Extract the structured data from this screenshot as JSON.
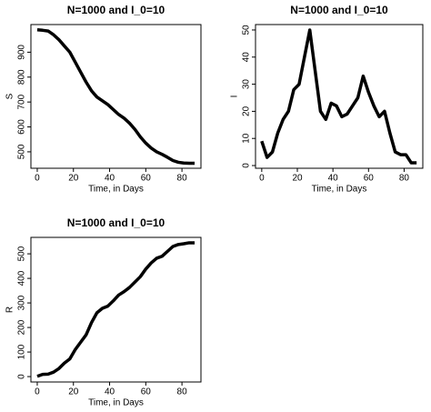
{
  "chart_data": [
    {
      "type": "line",
      "title": "N=1000 and I_0=10",
      "x_label": "Time, in Days",
      "y_label": "S",
      "x": [
        0,
        3,
        6,
        9,
        12,
        15,
        18,
        21,
        24,
        27,
        30,
        33,
        36,
        39,
        42,
        45,
        48,
        51,
        54,
        57,
        60,
        63,
        66,
        69,
        72,
        75,
        78,
        81,
        84,
        87
      ],
      "series": [
        {
          "name": "S",
          "color": "#000000",
          "values": [
            990,
            988,
            985,
            970,
            950,
            925,
            900,
            860,
            820,
            780,
            745,
            720,
            705,
            690,
            670,
            650,
            635,
            615,
            590,
            560,
            535,
            515,
            500,
            490,
            478,
            465,
            458,
            455,
            454,
            454
          ]
        }
      ],
      "xlim": [
        -3.5,
        90.5
      ],
      "xticks": [
        0,
        20,
        40,
        60,
        80
      ],
      "ylim": [
        434,
        1011
      ],
      "yticks": [
        500,
        600,
        700,
        800,
        900
      ]
    },
    {
      "type": "line",
      "title": "N=1000 and I_0=10",
      "x_label": "Time, in Days",
      "y_label": "I",
      "x": [
        0,
        3,
        6,
        9,
        12,
        15,
        18,
        21,
        24,
        27,
        30,
        33,
        36,
        39,
        42,
        45,
        48,
        51,
        54,
        57,
        60,
        63,
        66,
        69,
        72,
        75,
        78,
        81,
        84,
        87
      ],
      "series": [
        {
          "name": "I",
          "color": "#000000",
          "values": [
            9,
            3,
            5,
            12,
            17,
            20,
            28,
            30,
            40,
            50,
            35,
            20,
            17,
            23,
            22,
            18,
            19,
            22,
            25,
            33,
            27,
            22,
            18,
            20,
            12,
            5,
            4,
            4,
            1,
            1
          ]
        }
      ],
      "xlim": [
        -3.5,
        90.5
      ],
      "xticks": [
        0,
        20,
        40,
        60,
        80
      ],
      "ylim": [
        -1,
        52
      ],
      "yticks": [
        0,
        10,
        20,
        30,
        40,
        50
      ]
    },
    {
      "type": "line",
      "title": "N=1000 and I_0=10",
      "x_label": "Time, in Days",
      "y_label": "R",
      "x": [
        0,
        3,
        6,
        9,
        12,
        15,
        18,
        21,
        24,
        27,
        30,
        33,
        36,
        39,
        42,
        45,
        48,
        51,
        54,
        57,
        60,
        63,
        66,
        69,
        72,
        75,
        78,
        81,
        84,
        87
      ],
      "series": [
        {
          "name": "R",
          "color": "#000000",
          "values": [
            1,
            9,
            10,
            18,
            33,
            55,
            72,
            110,
            140,
            170,
            220,
            260,
            278,
            287,
            308,
            332,
            346,
            363,
            385,
            407,
            438,
            463,
            482,
            490,
            510,
            530,
            538,
            541,
            545,
            545
          ]
        }
      ],
      "xlim": [
        -3.5,
        90.5
      ],
      "xticks": [
        0,
        20,
        40,
        60,
        80
      ],
      "ylim": [
        -22,
        567
      ],
      "yticks": [
        0,
        100,
        200,
        300,
        400,
        500
      ]
    }
  ]
}
